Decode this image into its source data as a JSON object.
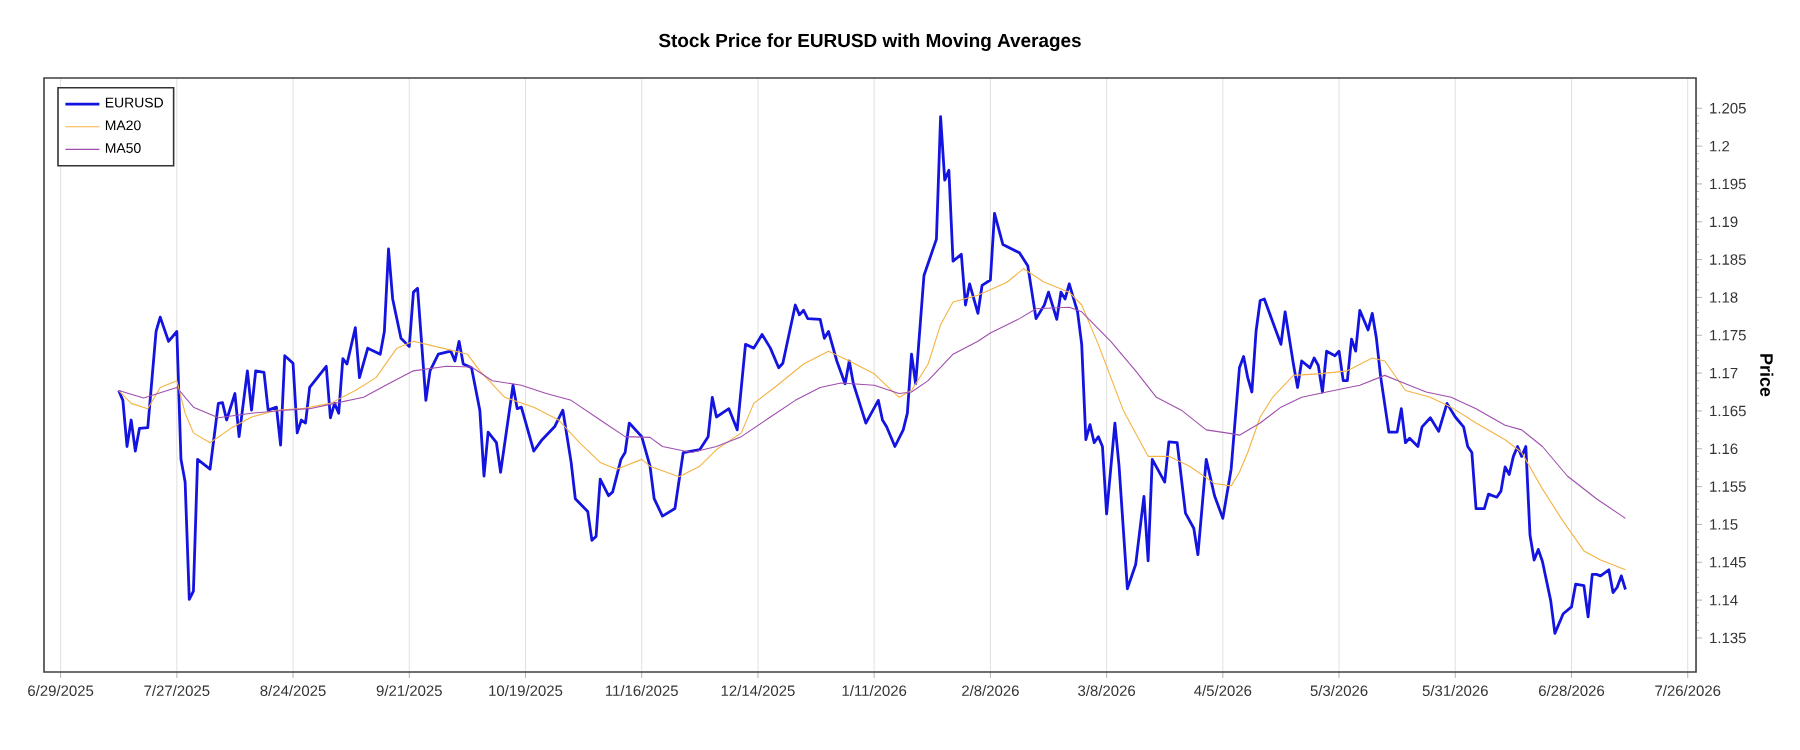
{
  "chart_data": {
    "type": "line",
    "title": "Stock Price for EURUSD with Moving Averages",
    "ylabel": "Price",
    "grid": "x",
    "legend": "top left",
    "line_style": "solid",
    "xlim": [
      "2025-06-25",
      "2026-07-28"
    ],
    "xticks": [
      {
        "value": "2025-06-29",
        "label": "6/29/2025"
      },
      {
        "value": "2025-07-27",
        "label": "7/27/2025"
      },
      {
        "value": "2025-08-24",
        "label": "8/24/2025"
      },
      {
        "value": "2025-09-21",
        "label": "9/21/2025"
      },
      {
        "value": "2025-10-19",
        "label": "10/19/2025"
      },
      {
        "value": "2025-11-16",
        "label": "11/16/2025"
      },
      {
        "value": "2025-12-14",
        "label": "12/14/2025"
      },
      {
        "value": "2026-01-11",
        "label": "1/11/2026"
      },
      {
        "value": "2026-02-08",
        "label": "2/8/2026"
      },
      {
        "value": "2026-03-08",
        "label": "3/8/2026"
      },
      {
        "value": "2026-04-05",
        "label": "4/5/2026"
      },
      {
        "value": "2026-05-03",
        "label": "5/3/2026"
      },
      {
        "value": "2026-05-31",
        "label": "5/31/2026"
      },
      {
        "value": "2026-06-28",
        "label": "6/28/2026"
      },
      {
        "value": "2026-07-26",
        "label": "7/26/2026"
      }
    ],
    "ylim": [
      1.1305,
      1.209
    ],
    "yticks": [
      1.135,
      1.14,
      1.145,
      1.15,
      1.155,
      1.16,
      1.165,
      1.17,
      1.175,
      1.18,
      1.185,
      1.19,
      1.195,
      1.2,
      1.205
    ],
    "series": [
      {
        "name": "EURUSD",
        "color": "#1414e0",
        "x": [
          "2025-07-13",
          "2025-07-14",
          "2025-07-15",
          "2025-07-16",
          "2025-07-17",
          "2025-07-18",
          "2025-07-20",
          "2025-07-22",
          "2025-07-23",
          "2025-07-25",
          "2025-07-27",
          "2025-07-28",
          "2025-07-29",
          "2025-07-30",
          "2025-07-31",
          "2025-08-01",
          "2025-08-04",
          "2025-08-06",
          "2025-08-07",
          "2025-08-08",
          "2025-08-10",
          "2025-08-11",
          "2025-08-13",
          "2025-08-14",
          "2025-08-15",
          "2025-08-17",
          "2025-08-18",
          "2025-08-20",
          "2025-08-21",
          "2025-08-22",
          "2025-08-24",
          "2025-08-25",
          "2025-08-26",
          "2025-08-27",
          "2025-08-28",
          "2025-09-01",
          "2025-09-02",
          "2025-09-03",
          "2025-09-04",
          "2025-09-05",
          "2025-09-06",
          "2025-09-08",
          "2025-09-09",
          "2025-09-11",
          "2025-09-14",
          "2025-09-15",
          "2025-09-16",
          "2025-09-17",
          "2025-09-19",
          "2025-09-21",
          "2025-09-22",
          "2025-09-23",
          "2025-09-25",
          "2025-09-26",
          "2025-09-28",
          "2025-10-01",
          "2025-10-02",
          "2025-10-03",
          "2025-10-04",
          "2025-10-06",
          "2025-10-08",
          "2025-10-09",
          "2025-10-10",
          "2025-10-12",
          "2025-10-13",
          "2025-10-16",
          "2025-10-17",
          "2025-10-18",
          "2025-10-21",
          "2025-10-23",
          "2025-10-26",
          "2025-10-28",
          "2025-10-30",
          "2025-10-31",
          "2025-11-03",
          "2025-11-04",
          "2025-11-05",
          "2025-11-06",
          "2025-11-08",
          "2025-11-09",
          "2025-11-11",
          "2025-11-12",
          "2025-11-13",
          "2025-11-16",
          "2025-11-18",
          "2025-11-19",
          "2025-11-21",
          "2025-11-24",
          "2025-11-26",
          "2025-11-30",
          "2025-12-02",
          "2025-12-03",
          "2025-12-04",
          "2025-12-07",
          "2025-12-09",
          "2025-12-11",
          "2025-12-13",
          "2025-12-15",
          "2025-12-17",
          "2025-12-19",
          "2025-12-20",
          "2025-12-23",
          "2025-12-24",
          "2025-12-25",
          "2025-12-26",
          "2025-12-29",
          "2025-12-30",
          "2025-12-31",
          "2026-01-02",
          "2026-01-04",
          "2026-01-05",
          "2026-01-06",
          "2026-01-09",
          "2026-01-12",
          "2026-01-13",
          "2026-01-14",
          "2026-01-16",
          "2026-01-18",
          "2026-01-19",
          "2026-01-20",
          "2026-01-21",
          "2026-01-23",
          "2026-01-26",
          "2026-01-27",
          "2026-01-28",
          "2026-01-29",
          "2026-01-30",
          "2026-02-01",
          "2026-02-02",
          "2026-02-03",
          "2026-02-05",
          "2026-02-06",
          "2026-02-08",
          "2026-02-09",
          "2026-02-11",
          "2026-02-15",
          "2026-02-17",
          "2026-02-19",
          "2026-02-21",
          "2026-02-22",
          "2026-02-24",
          "2026-02-25",
          "2026-02-26",
          "2026-02-27",
          "2026-03-01",
          "2026-03-02",
          "2026-03-03",
          "2026-03-04",
          "2026-03-05",
          "2026-03-06",
          "2026-03-07",
          "2026-03-08",
          "2026-03-10",
          "2026-03-11",
          "2026-03-13",
          "2026-03-15",
          "2026-03-17",
          "2026-03-18",
          "2026-03-19",
          "2026-03-22",
          "2026-03-23",
          "2026-03-25",
          "2026-03-27",
          "2026-03-29",
          "2026-03-30",
          "2026-04-01",
          "2026-04-03",
          "2026-04-05",
          "2026-04-07",
          "2026-04-09",
          "2026-04-10",
          "2026-04-11",
          "2026-04-12",
          "2026-04-13",
          "2026-04-14",
          "2026-04-15",
          "2026-04-17",
          "2026-04-19",
          "2026-04-20",
          "2026-04-22",
          "2026-04-23",
          "2026-04-24",
          "2026-04-26",
          "2026-04-27",
          "2026-04-28",
          "2026-04-29",
          "2026-04-30",
          "2026-05-02",
          "2026-05-03",
          "2026-05-04",
          "2026-05-05",
          "2026-05-06",
          "2026-05-07",
          "2026-05-08",
          "2026-05-10",
          "2026-05-11",
          "2026-05-12",
          "2026-05-13",
          "2026-05-15",
          "2026-05-17",
          "2026-05-18",
          "2026-05-19",
          "2026-05-20",
          "2026-05-22",
          "2026-05-23",
          "2026-05-25",
          "2026-05-27",
          "2026-05-29",
          "2026-05-31",
          "2026-06-02",
          "2026-06-03",
          "2026-06-04",
          "2026-06-05",
          "2026-06-07",
          "2026-06-08",
          "2026-06-10",
          "2026-06-11",
          "2026-06-12",
          "2026-06-13",
          "2026-06-14",
          "2026-06-15",
          "2026-06-16",
          "2026-06-17",
          "2026-06-18",
          "2026-06-19",
          "2026-06-20",
          "2026-06-21",
          "2026-06-23",
          "2026-06-24",
          "2026-06-26",
          "2026-06-28",
          "2026-06-29",
          "2026-07-01",
          "2026-07-02",
          "2026-07-03",
          "2026-07-04",
          "2026-07-05",
          "2026-07-07",
          "2026-07-08",
          "2026-07-09",
          "2026-07-10",
          "2026-07-11"
        ],
        "values": [
          1.1677,
          1.1664,
          1.1603,
          1.1638,
          1.1597,
          1.1627,
          1.1628,
          1.1755,
          1.1774,
          1.1742,
          1.1755,
          1.1586,
          1.1556,
          1.1401,
          1.1412,
          1.1586,
          1.1573,
          1.166,
          1.1661,
          1.1638,
          1.1673,
          1.1616,
          1.1703,
          1.1651,
          1.1703,
          1.1701,
          1.1651,
          1.1655,
          1.1605,
          1.1723,
          1.1713,
          1.1621,
          1.1638,
          1.1634,
          1.1681,
          1.1709,
          1.1641,
          1.166,
          1.1647,
          1.1719,
          1.1712,
          1.176,
          1.1694,
          1.1733,
          1.1725,
          1.1755,
          1.1864,
          1.1798,
          1.1746,
          1.1735,
          1.1807,
          1.1812,
          1.1664,
          1.1703,
          1.1725,
          1.1729,
          1.1716,
          1.1742,
          1.1712,
          1.1707,
          1.1651,
          1.1564,
          1.1622,
          1.1608,
          1.1569,
          1.1684,
          1.1653,
          1.1655,
          1.1597,
          1.1612,
          1.1629,
          1.1651,
          1.1582,
          1.1534,
          1.1517,
          1.1479,
          1.1484,
          1.156,
          1.1538,
          1.1543,
          1.1586,
          1.1595,
          1.1634,
          1.1616,
          1.1577,
          1.1534,
          1.1511,
          1.1521,
          1.1595,
          1.1599,
          1.1616,
          1.1668,
          1.1642,
          1.1653,
          1.1625,
          1.1738,
          1.1733,
          1.1751,
          1.1733,
          1.1707,
          1.1713,
          1.179,
          1.1777,
          1.1783,
          1.1772,
          1.1771,
          1.1746,
          1.1755,
          1.1716,
          1.1686,
          1.1716,
          1.1686,
          1.1634,
          1.1664,
          1.1638,
          1.1629,
          1.1603,
          1.1625,
          1.1647,
          1.1725,
          1.1686,
          1.1829,
          1.1877,
          1.2039,
          1.1955,
          1.1968,
          1.1848,
          1.1857,
          1.179,
          1.1818,
          1.1779,
          1.1816,
          1.1823,
          1.1911,
          1.187,
          1.1859,
          1.1842,
          1.1772,
          1.179,
          1.1807,
          1.1771,
          1.1807,
          1.1798,
          1.1818,
          1.1781,
          1.1738,
          1.1612,
          1.1632,
          1.1608,
          1.1616,
          1.1603,
          1.1514,
          1.1634,
          1.1577,
          1.1415,
          1.1447,
          1.1537,
          1.1452,
          1.1586,
          1.1556,
          1.1609,
          1.1608,
          1.1515,
          1.1495,
          1.146,
          1.1586,
          1.1538,
          1.1508,
          1.1573,
          1.1707,
          1.1722,
          1.1694,
          1.1675,
          1.1755,
          1.1796,
          1.1798,
          1.1768,
          1.1738,
          1.1781,
          1.1712,
          1.1681,
          1.1716,
          1.1707,
          1.172,
          1.171,
          1.1675,
          1.1729,
          1.1723,
          1.1729,
          1.169,
          1.169,
          1.1745,
          1.1729,
          1.1783,
          1.1757,
          1.1779,
          1.1746,
          1.1696,
          1.1622,
          1.1622,
          1.1653,
          1.1608,
          1.1614,
          1.1603,
          1.1629,
          1.1641,
          1.1623,
          1.166,
          1.1642,
          1.1629,
          1.1603,
          1.1595,
          1.1521,
          1.1521,
          1.154,
          1.1536,
          1.1544,
          1.1576,
          1.1566,
          1.159,
          1.1603,
          1.159,
          1.1603,
          1.1486,
          1.1453,
          1.1467,
          1.1451,
          1.1399,
          1.1356,
          1.1382,
          1.1391,
          1.1421,
          1.1419,
          1.1378,
          1.1434,
          1.1434,
          1.1432,
          1.144,
          1.141,
          1.1417,
          1.1432,
          1.1414
        ]
      },
      {
        "name": "MA20",
        "color": "#f5b342",
        "x": [
          "2025-07-13",
          "2025-07-16",
          "2025-07-20",
          "2025-07-23",
          "2025-07-27",
          "2025-07-29",
          "2025-07-31",
          "2025-08-04",
          "2025-08-09",
          "2025-08-14",
          "2025-08-20",
          "2025-08-26",
          "2025-09-02",
          "2025-09-08",
          "2025-09-13",
          "2025-09-18",
          "2025-09-22",
          "2025-09-29",
          "2025-10-05",
          "2025-10-08",
          "2025-10-14",
          "2025-10-21",
          "2025-10-27",
          "2025-11-01",
          "2025-11-06",
          "2025-11-10",
          "2025-11-16",
          "2025-11-18",
          "2025-11-25",
          "2025-11-30",
          "2025-12-04",
          "2025-12-10",
          "2025-12-13",
          "2025-12-18",
          "2025-12-25",
          "2025-12-31",
          "2026-01-05",
          "2026-01-11",
          "2026-01-17",
          "2026-01-20",
          "2026-01-24",
          "2026-01-27",
          "2026-01-30",
          "2026-02-05",
          "2026-02-12",
          "2026-02-16",
          "2026-02-21",
          "2026-02-27",
          "2026-03-02",
          "2026-03-06",
          "2026-03-12",
          "2026-03-18",
          "2026-03-23",
          "2026-03-28",
          "2026-04-03",
          "2026-04-07",
          "2026-04-09",
          "2026-04-11",
          "2026-04-14",
          "2026-04-17",
          "2026-04-22",
          "2026-04-28",
          "2026-05-05",
          "2026-05-11",
          "2026-05-14",
          "2026-05-19",
          "2026-05-25",
          "2026-05-30",
          "2026-06-05",
          "2026-06-12",
          "2026-06-16",
          "2026-06-21",
          "2026-06-26",
          "2026-07-01",
          "2026-07-05",
          "2026-07-11"
        ],
        "values": [
          1.1677,
          1.166,
          1.1653,
          1.1681,
          1.169,
          1.1647,
          1.1621,
          1.1608,
          1.1627,
          1.1642,
          1.1651,
          1.1653,
          1.166,
          1.1677,
          1.1694,
          1.1733,
          1.1742,
          1.1733,
          1.1725,
          1.1703,
          1.1668,
          1.1655,
          1.1638,
          1.1608,
          1.1582,
          1.1573,
          1.1586,
          1.1577,
          1.1563,
          1.1577,
          1.1599,
          1.1621,
          1.166,
          1.1681,
          1.1712,
          1.1729,
          1.1716,
          1.1699,
          1.1668,
          1.1677,
          1.1712,
          1.1764,
          1.1794,
          1.1803,
          1.182,
          1.1838,
          1.182,
          1.1807,
          1.179,
          1.1738,
          1.1651,
          1.159,
          1.159,
          1.1577,
          1.1554,
          1.1551,
          1.1569,
          1.1595,
          1.1642,
          1.1668,
          1.1697,
          1.1699,
          1.1703,
          1.172,
          1.1716,
          1.1677,
          1.1668,
          1.1655,
          1.1634,
          1.1612,
          1.1595,
          1.1547,
          1.1504,
          1.1465,
          1.1453,
          1.144
        ]
      },
      {
        "name": "MA50",
        "color": "#a04fae",
        "x": [
          "2025-07-13",
          "2025-07-19",
          "2025-07-27",
          "2025-07-31",
          "2025-08-06",
          "2025-08-14",
          "2025-08-22",
          "2025-08-28",
          "2025-09-03",
          "2025-09-10",
          "2025-09-16",
          "2025-09-22",
          "2025-09-30",
          "2025-10-06",
          "2025-10-11",
          "2025-10-18",
          "2025-10-24",
          "2025-10-30",
          "2025-11-06",
          "2025-11-12",
          "2025-11-18",
          "2025-11-21",
          "2025-11-28",
          "2025-12-04",
          "2025-12-10",
          "2025-12-17",
          "2025-12-23",
          "2025-12-29",
          "2026-01-03",
          "2026-01-11",
          "2026-01-17",
          "2026-01-20",
          "2026-01-24",
          "2026-01-30",
          "2026-02-05",
          "2026-02-08",
          "2026-02-15",
          "2026-02-19",
          "2026-02-27",
          "2026-03-02",
          "2026-03-09",
          "2026-03-15",
          "2026-03-20",
          "2026-03-26",
          "2026-04-01",
          "2026-04-07",
          "2026-04-09",
          "2026-04-14",
          "2026-04-19",
          "2026-04-24",
          "2026-04-30",
          "2026-05-08",
          "2026-05-14",
          "2026-05-19",
          "2026-05-24",
          "2026-05-30",
          "2026-06-05",
          "2026-06-12",
          "2026-06-16",
          "2026-06-21",
          "2026-06-27",
          "2026-07-04",
          "2026-07-11"
        ],
        "values": [
          1.1677,
          1.1667,
          1.1681,
          1.1655,
          1.1641,
          1.1647,
          1.1651,
          1.1653,
          1.166,
          1.1668,
          1.1686,
          1.1703,
          1.1709,
          1.1708,
          1.169,
          1.1684,
          1.1673,
          1.1664,
          1.1638,
          1.1616,
          1.1615,
          1.1603,
          1.1595,
          1.1603,
          1.1616,
          1.1642,
          1.1664,
          1.1681,
          1.1687,
          1.1684,
          1.1673,
          1.1675,
          1.169,
          1.1725,
          1.1742,
          1.1753,
          1.1772,
          1.1785,
          1.1787,
          1.1781,
          1.1742,
          1.1703,
          1.1668,
          1.1651,
          1.1625,
          1.162,
          1.1618,
          1.1634,
          1.1655,
          1.1668,
          1.1675,
          1.1684,
          1.1697,
          1.1686,
          1.1675,
          1.1668,
          1.1653,
          1.1631,
          1.1625,
          1.1603,
          1.1564,
          1.1534,
          1.1508
        ]
      }
    ]
  }
}
